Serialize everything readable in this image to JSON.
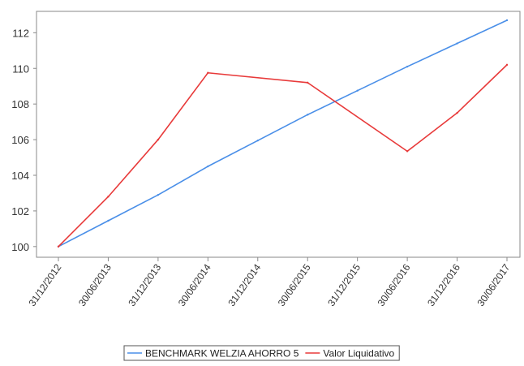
{
  "chart_data": {
    "type": "line",
    "title": "",
    "xlabel": "",
    "ylabel": "",
    "categories": [
      "31/12/2012",
      "30/06/2013",
      "31/12/2013",
      "30/06/2014",
      "31/12/2014",
      "30/06/2015",
      "31/12/2015",
      "30/06/2016",
      "31/12/2016",
      "30/06/2017"
    ],
    "ylim": [
      99.4,
      113.2
    ],
    "yticks": [
      100,
      102,
      104,
      106,
      108,
      110,
      112
    ],
    "grid": false,
    "legend_position": "bottom",
    "series": [
      {
        "name": "BENCHMARK WELZIA AHORRO 5",
        "color": "#4a8fe8",
        "values": [
          100.0,
          101.45,
          102.9,
          104.5,
          105.95,
          107.4,
          108.75,
          110.1,
          111.4,
          112.7
        ]
      },
      {
        "name": "Valor Liquidativo",
        "color": "#e83a3a",
        "values": [
          100.0,
          102.8,
          106.0,
          109.75,
          null,
          109.2,
          null,
          105.35,
          107.5,
          110.2
        ]
      }
    ]
  }
}
